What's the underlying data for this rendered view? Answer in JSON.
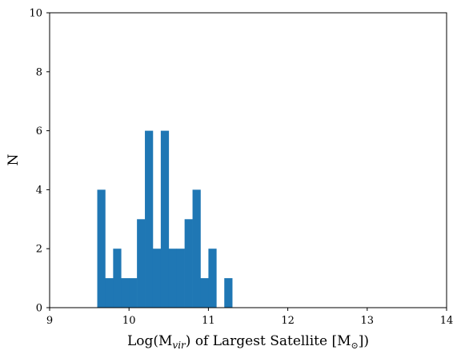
{
  "chart_data": {
    "type": "bar",
    "subtype": "histogram",
    "xlabel_main": "Log(M",
    "xlabel_sub": "vir",
    "xlabel_mid": ") of Largest Satellite [M",
    "xlabel_sun": "⊙",
    "xlabel_end": "])",
    "ylabel": "N",
    "xlim": [
      9,
      14
    ],
    "ylim": [
      0,
      10
    ],
    "xticks": [
      "9",
      "10",
      "11",
      "12",
      "13",
      "14"
    ],
    "yticks": [
      "0",
      "2",
      "4",
      "6",
      "8",
      "10"
    ],
    "bin_width": 0.1,
    "bins": [
      {
        "x0": 9.6,
        "value": 4
      },
      {
        "x0": 9.7,
        "value": 1
      },
      {
        "x0": 9.8,
        "value": 2
      },
      {
        "x0": 9.9,
        "value": 1
      },
      {
        "x0": 10.0,
        "value": 1
      },
      {
        "x0": 10.1,
        "value": 3
      },
      {
        "x0": 10.2,
        "value": 6
      },
      {
        "x0": 10.3,
        "value": 2
      },
      {
        "x0": 10.4,
        "value": 6
      },
      {
        "x0": 10.5,
        "value": 2
      },
      {
        "x0": 10.6,
        "value": 2
      },
      {
        "x0": 10.7,
        "value": 3
      },
      {
        "x0": 10.8,
        "value": 4
      },
      {
        "x0": 10.9,
        "value": 1
      },
      {
        "x0": 11.0,
        "value": 2
      },
      {
        "x0": 11.2,
        "value": 1
      }
    ],
    "bar_color": "#1f77b4",
    "grid": false
  }
}
